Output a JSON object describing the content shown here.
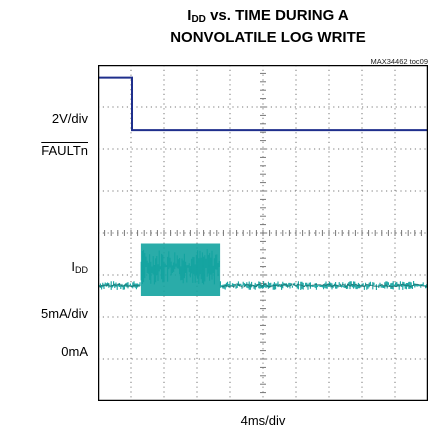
{
  "chart_data": {
    "type": "line",
    "title_prefix": "I",
    "title_sub": "DD",
    "title_rest": " vs. TIME DURING A",
    "title_line2": "NONVOLATILE LOG WRITE",
    "reference": "MAX34462 toc09",
    "xlabel": "4ms/div",
    "grid": true,
    "x_divisions": 10,
    "y_divisions": 8,
    "left_labels": {
      "top_scale": "2V/div",
      "top_signal": "FAULTn",
      "bottom_signal_main": "I",
      "bottom_signal_sub": "DD",
      "bottom_scale": "5mA/div",
      "bottom_zero": "0mA"
    },
    "series": [
      {
        "name": "FAULTn",
        "color": "#1f2f8c",
        "units": "div",
        "x": [
          0,
          1.03,
          1.03,
          10
        ],
        "y": [
          7.7,
          7.7,
          6.45,
          6.45
        ]
      },
      {
        "name": "IDD",
        "color": "#13a3a0",
        "units": "div",
        "x": [
          0,
          1.3,
          1.3,
          3.7,
          3.7,
          10
        ],
        "y": [
          2.75,
          2.75,
          3.2,
          3.2,
          2.75,
          2.75
        ]
      }
    ],
    "colors": {
      "grid": "#777777",
      "frame": "#000000"
    }
  }
}
